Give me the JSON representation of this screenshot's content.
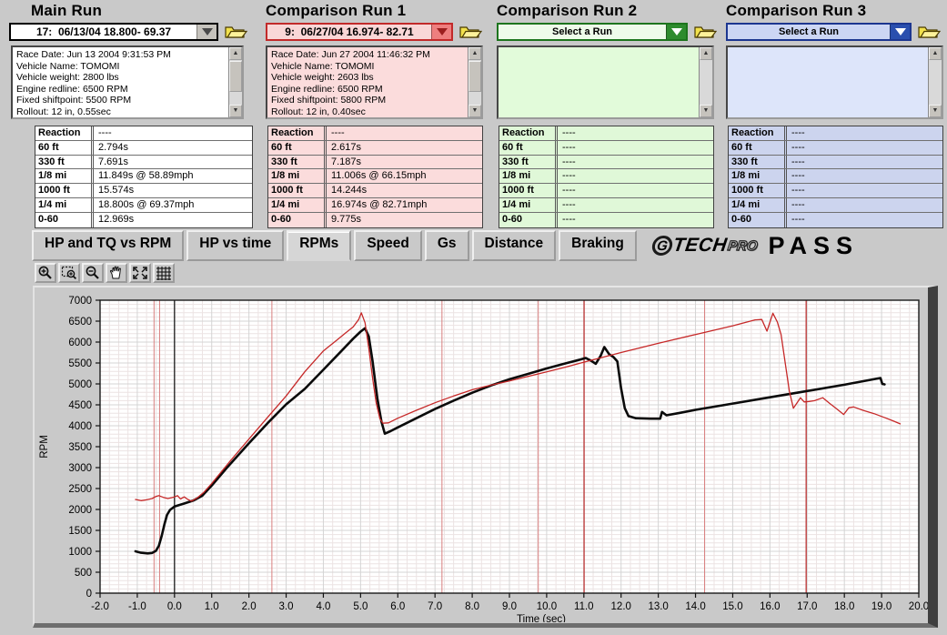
{
  "runs": [
    {
      "title": "Main Run",
      "selector_value": "17:  06/13/04 18.800- 69.37",
      "info_lines": [
        "Race Date: Jun 13 2004  9:31:53 PM",
        "Vehicle Name: TOMOMI",
        "Vehicle weight: 2800 lbs",
        "Engine redline: 6500 RPM",
        "Fixed shiftpoint: 5500 RPM",
        "Rollout: 12 in, 0.55sec"
      ],
      "stats": [
        "----",
        "2.794s",
        "7.691s",
        "11.849s @ 58.89mph",
        "15.574s",
        "18.800s @ 69.37mph",
        "12.969s"
      ],
      "has_scroll_thumb": true,
      "colors": {
        "combo_bg": "#ffffff",
        "combo_border": "#000000",
        "combo_text": "#000000",
        "btn_bg": "#c6c3bd",
        "tri": "#4a4a4a",
        "box_bg": "#ffffff",
        "table_bg": "#ffffff"
      }
    },
    {
      "title": "Comparison Run 1",
      "selector_value": "9:  06/27/04 16.974- 82.71",
      "info_lines": [
        "Race Date: Jun 27 2004  11:46:32 PM",
        "Vehicle Name: TOMOMI",
        "Vehicle weight: 2603 lbs",
        "Engine redline: 6500 RPM",
        "Fixed shiftpoint: 5800 RPM",
        "Rollout: 12 in, 0.40sec"
      ],
      "stats": [
        "----",
        "2.617s",
        "7.187s",
        "11.006s @ 66.15mph",
        "14.244s",
        "16.974s @ 82.71mph",
        "9.775s"
      ],
      "has_scroll_thumb": true,
      "colors": {
        "combo_bg": "#f9d7d7",
        "combo_border": "#c22a2a",
        "combo_text": "#000000",
        "btn_bg": "#ee7f7f",
        "tri": "#9c1f1f",
        "box_bg": "#fbdcdc",
        "table_bg": "#fbdcdc"
      }
    },
    {
      "title": "Comparison Run 2",
      "selector_value": "Select a Run",
      "info_lines": [],
      "stats": [
        "----",
        "----",
        "----",
        "----",
        "----",
        "----",
        "----"
      ],
      "has_scroll_thumb": false,
      "colors": {
        "combo_bg": "#eefbea",
        "combo_border": "#1d741d",
        "combo_text": "#000000",
        "btn_bg": "#2e8b2e",
        "tri": "#ffffff",
        "box_bg": "#e2fbda",
        "table_bg": "#e0f8d8"
      }
    },
    {
      "title": "Comparison Run 3",
      "selector_value": "Select a Run",
      "info_lines": [],
      "stats": [
        "----",
        "----",
        "----",
        "----",
        "----",
        "----",
        "----"
      ],
      "has_scroll_thumb": false,
      "colors": {
        "combo_bg": "#ccd6f4",
        "combo_border": "#1c3690",
        "combo_text": "#000000",
        "btn_bg": "#2a4fae",
        "tri": "#ffffff",
        "box_bg": "#dde5fa",
        "table_bg": "#ccd4ee"
      }
    }
  ],
  "stat_labels": [
    "Reaction",
    "60 ft",
    "330 ft",
    "1/8 mi",
    "1000 ft",
    "1/4 mi",
    "0-60"
  ],
  "tabs": [
    {
      "label": "HP and TQ vs RPM",
      "active": false
    },
    {
      "label": "HP vs time",
      "active": false
    },
    {
      "label": "RPMs",
      "active": true
    },
    {
      "label": "Speed",
      "active": false
    },
    {
      "label": "Gs",
      "active": false
    },
    {
      "label": "Distance",
      "active": false
    },
    {
      "label": "Braking",
      "active": false
    }
  ],
  "logo": {
    "g": "G",
    "tech": "TECH",
    "pro": "PRO",
    "pass": "PASS"
  },
  "toolbar_icons": [
    "zoom-in-icon",
    "zoom-box-icon",
    "zoom-out-icon",
    "pan-hand-icon",
    "fit-view-icon",
    "grid-icon"
  ],
  "chart_data": {
    "type": "line",
    "title": "",
    "xlabel": "Time (sec)",
    "ylabel": "RPM",
    "xlim": [
      -2,
      20
    ],
    "ylim": [
      0,
      7000
    ],
    "x_ticks": [
      "-2.0",
      "-1.0",
      "0.0",
      "1.0",
      "2.0",
      "3.0",
      "4.0",
      "5.0",
      "6.0",
      "7.0",
      "8.0",
      "9.0",
      "10.0",
      "11.0",
      "12.0",
      "13.0",
      "14.0",
      "15.0",
      "16.0",
      "17.0",
      "18.0",
      "19.0",
      "20.0"
    ],
    "y_ticks": [
      "0",
      "500",
      "1000",
      "1500",
      "2000",
      "2500",
      "3000",
      "3500",
      "4000",
      "4500",
      "5000",
      "5500",
      "6000",
      "6500",
      "7000"
    ],
    "grid": "major gray + fine pinkish minor",
    "marker_lines_black": [
      0.0
    ],
    "marker_lines_red": [
      -0.55,
      -0.4,
      2.617,
      7.187,
      9.775,
      11.006,
      14.244,
      16.974
    ],
    "series": [
      {
        "name": "Main Run",
        "color": "#0a0a0a",
        "width": 2.6,
        "points": [
          [
            -1.05,
            1000
          ],
          [
            -0.9,
            965
          ],
          [
            -0.72,
            950
          ],
          [
            -0.6,
            960
          ],
          [
            -0.5,
            1010
          ],
          [
            -0.42,
            1130
          ],
          [
            -0.34,
            1380
          ],
          [
            -0.27,
            1650
          ],
          [
            -0.2,
            1870
          ],
          [
            -0.12,
            1990
          ],
          [
            0,
            2070
          ],
          [
            0.25,
            2140
          ],
          [
            0.5,
            2210
          ],
          [
            0.75,
            2330
          ],
          [
            1,
            2570
          ],
          [
            1.4,
            2990
          ],
          [
            2,
            3580
          ],
          [
            2.5,
            4060
          ],
          [
            3,
            4510
          ],
          [
            3.5,
            4880
          ],
          [
            4,
            5340
          ],
          [
            4.5,
            5800
          ],
          [
            4.8,
            6080
          ],
          [
            5,
            6250
          ],
          [
            5.12,
            6330
          ],
          [
            5.22,
            6130
          ],
          [
            5.32,
            5550
          ],
          [
            5.45,
            4650
          ],
          [
            5.56,
            4100
          ],
          [
            5.65,
            3810
          ],
          [
            5.8,
            3870
          ],
          [
            6,
            3960
          ],
          [
            6.5,
            4180
          ],
          [
            7,
            4400
          ],
          [
            7.5,
            4600
          ],
          [
            8,
            4790
          ],
          [
            8.5,
            4960
          ],
          [
            9,
            5110
          ],
          [
            9.5,
            5240
          ],
          [
            10,
            5370
          ],
          [
            10.5,
            5490
          ],
          [
            10.9,
            5580
          ],
          [
            11.05,
            5620
          ],
          [
            11.2,
            5550
          ],
          [
            11.32,
            5480
          ],
          [
            11.45,
            5670
          ],
          [
            11.55,
            5880
          ],
          [
            11.68,
            5710
          ],
          [
            11.8,
            5640
          ],
          [
            11.9,
            5540
          ],
          [
            12,
            4900
          ],
          [
            12.1,
            4420
          ],
          [
            12.2,
            4230
          ],
          [
            12.4,
            4180
          ],
          [
            12.8,
            4170
          ],
          [
            13.05,
            4170
          ],
          [
            13.1,
            4330
          ],
          [
            13.22,
            4250
          ],
          [
            13.6,
            4310
          ],
          [
            14,
            4380
          ],
          [
            15,
            4530
          ],
          [
            16,
            4680
          ],
          [
            17,
            4830
          ],
          [
            18,
            4980
          ],
          [
            18.9,
            5130
          ],
          [
            18.97,
            5140
          ],
          [
            19.02,
            5000
          ],
          [
            19.08,
            4990
          ]
        ]
      },
      {
        "name": "Comparison Run 1",
        "color": "#c62828",
        "width": 1.3,
        "points": [
          [
            -1.05,
            2240
          ],
          [
            -0.9,
            2210
          ],
          [
            -0.75,
            2230
          ],
          [
            -0.6,
            2260
          ],
          [
            -0.5,
            2310
          ],
          [
            -0.42,
            2330
          ],
          [
            -0.3,
            2290
          ],
          [
            -0.18,
            2260
          ],
          [
            -0.08,
            2280
          ],
          [
            0,
            2300
          ],
          [
            0.08,
            2330
          ],
          [
            0.16,
            2250
          ],
          [
            0.26,
            2300
          ],
          [
            0.36,
            2240
          ],
          [
            0.46,
            2200
          ],
          [
            0.6,
            2270
          ],
          [
            0.8,
            2420
          ],
          [
            1,
            2620
          ],
          [
            1.5,
            3160
          ],
          [
            2,
            3680
          ],
          [
            2.5,
            4200
          ],
          [
            3,
            4710
          ],
          [
            3.5,
            5290
          ],
          [
            4,
            5790
          ],
          [
            4.35,
            6040
          ],
          [
            4.6,
            6220
          ],
          [
            4.8,
            6360
          ],
          [
            4.95,
            6540
          ],
          [
            5.02,
            6700
          ],
          [
            5.12,
            6460
          ],
          [
            5.22,
            5850
          ],
          [
            5.32,
            5150
          ],
          [
            5.42,
            4550
          ],
          [
            5.52,
            4170
          ],
          [
            5.6,
            4060
          ],
          [
            5.75,
            4070
          ],
          [
            6,
            4180
          ],
          [
            6.5,
            4370
          ],
          [
            7,
            4550
          ],
          [
            7.5,
            4710
          ],
          [
            8,
            4860
          ],
          [
            8.5,
            4970
          ],
          [
            9,
            5070
          ],
          [
            9.5,
            5180
          ],
          [
            10,
            5290
          ],
          [
            10.5,
            5400
          ],
          [
            11,
            5520
          ],
          [
            12,
            5750
          ],
          [
            13,
            5970
          ],
          [
            14,
            6180
          ],
          [
            15,
            6390
          ],
          [
            15.6,
            6530
          ],
          [
            15.78,
            6540
          ],
          [
            15.92,
            6260
          ],
          [
            16.08,
            6690
          ],
          [
            16.2,
            6480
          ],
          [
            16.3,
            6180
          ],
          [
            16.42,
            5450
          ],
          [
            16.52,
            4840
          ],
          [
            16.63,
            4420
          ],
          [
            16.73,
            4550
          ],
          [
            16.82,
            4670
          ],
          [
            16.92,
            4570
          ],
          [
            17.05,
            4580
          ],
          [
            17.2,
            4600
          ],
          [
            17.42,
            4670
          ],
          [
            17.6,
            4540
          ],
          [
            17.8,
            4400
          ],
          [
            17.98,
            4270
          ],
          [
            18.12,
            4430
          ],
          [
            18.25,
            4450
          ],
          [
            18.5,
            4370
          ],
          [
            18.8,
            4290
          ],
          [
            19.1,
            4190
          ],
          [
            19.3,
            4120
          ],
          [
            19.5,
            4045
          ]
        ]
      }
    ]
  }
}
